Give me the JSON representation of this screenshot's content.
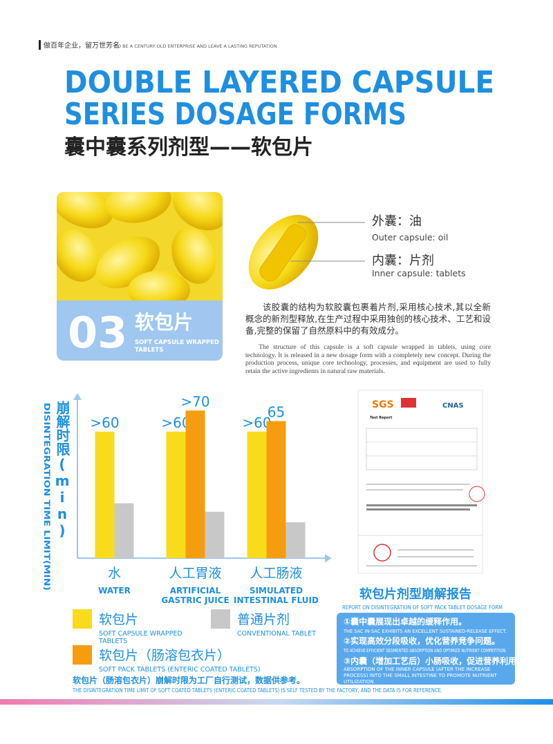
{
  "header": {
    "tagline_cn": "做百年企业，留万世芳名",
    "tagline_en": "TO BE A CENTURY OLD ENTERPRISE AND LEAVE A LASTING REPUTATION"
  },
  "title": {
    "en_line1": "DOUBLE LAYERED CAPSULE",
    "en_line2": "SERIES DOSAGE FORMS",
    "cn": "囊中囊系列剂型——软包片"
  },
  "product": {
    "number": "03",
    "name_cn": "软包片",
    "name_en": [
      "SOFT CAPSULE WRAPPED",
      "TABLETS"
    ]
  },
  "diagram": {
    "outer_cn": "外囊：油",
    "outer_en": "Outer capsule: oil",
    "inner_cn": "内囊：片剂",
    "inner_en": "Inner capsule: tablets"
  },
  "description": {
    "cn": "该胶囊的结构为软胶囊包裹着片剂,采用核心技术,其以全新概念的新剂型释放,在生产过程中采用独创的核心技术、工艺和设备,完整的保留了自然原料中的有效成分。",
    "en": "The structure of this capsule is a soft capsule wrapped in tablets, using core technology. It is released in a new dosage form with a completely new concept. During the production process, unique core technology, processes, and equipment are used to fully retain the active ingredients in natural raw materials."
  },
  "chart_data": {
    "type": "bar",
    "y_label_cn": "崩解时限(min)",
    "y_label_en": "DISINTEGRATION TIME LIMIT(MIN)",
    "categories": [
      "水",
      "人工胃液",
      "人工肠液"
    ],
    "categories_en": [
      [
        "WATER"
      ],
      [
        "ARTIFICIAL",
        "GASTRIC JUICE"
      ],
      [
        "SIMULATED",
        "INTESTINAL FLUID"
      ]
    ],
    "ylim": [
      0,
      75
    ],
    "series": [
      {
        "name": "软包片",
        "color": "#f8dc1c",
        "values": [
          60,
          60,
          60
        ],
        "value_labels": [
          ">60",
          ">60",
          ">60"
        ]
      },
      {
        "name": "软包片（肠溶包衣片）",
        "color": "#f59d0e",
        "values": [
          null,
          70,
          65
        ],
        "value_labels": [
          null,
          ">70",
          "65"
        ]
      },
      {
        "name": "普通片剂",
        "color": "#c8c8c8",
        "values": [
          26,
          22,
          17
        ]
      }
    ],
    "legend_subtitles": [
      [
        "SOFT CAPSULE WRAPPED",
        "TABLETS"
      ],
      [
        "SOFT PACK TABLETS (ENTERIC COATED TABLETS)"
      ],
      [
        "CONVENTIONAL TABLET"
      ]
    ]
  },
  "report_image": {
    "logo1": "SGS",
    "logo2": "CNAS",
    "heading": "Test Report"
  },
  "report": {
    "title_cn": "软包片剂型崩解报告",
    "title_en": "REPORT ON DISINTEGRATION OF SOFT PACK TABLET DOSAGE FORM",
    "points": [
      {
        "cn": "①囊中囊展现出卓越的缓释作用。",
        "en": "THE SAC IN-SAC EXHIBITS AN EXCELLENT SUSTAINED-RELEASE EFFECT."
      },
      {
        "cn": "②实现高效分段吸收，优化营养竞争问题。",
        "en": "TO ACHIEVE EFFICIENT SEGMENTED ABSORPTION AND OPTIMIZE NUTRIENT COMPETITION."
      },
      {
        "cn": "③内囊（增加工艺后）小肠吸收，促进营养利用。",
        "en": "ABSORPTION OF THE INNER CAPSULE (AFTER THE INCREASE PROCESS) INTO THE SMALL INTESTINE TO PROMOTE NUTRIENT UTILIZATION."
      }
    ]
  },
  "footnote": {
    "cn": "软包片（肠溶包衣片）崩解时限为工厂自行测试，数据供参考。",
    "en": "THE DISINTEGRATION TIME LIMIT OF SOFT COATED TABLETS (ENTERIC COATED TABLETS) IS SELF TESTED BY THE FACTORY, AND THE DATA IS FOR REFERENCE."
  }
}
